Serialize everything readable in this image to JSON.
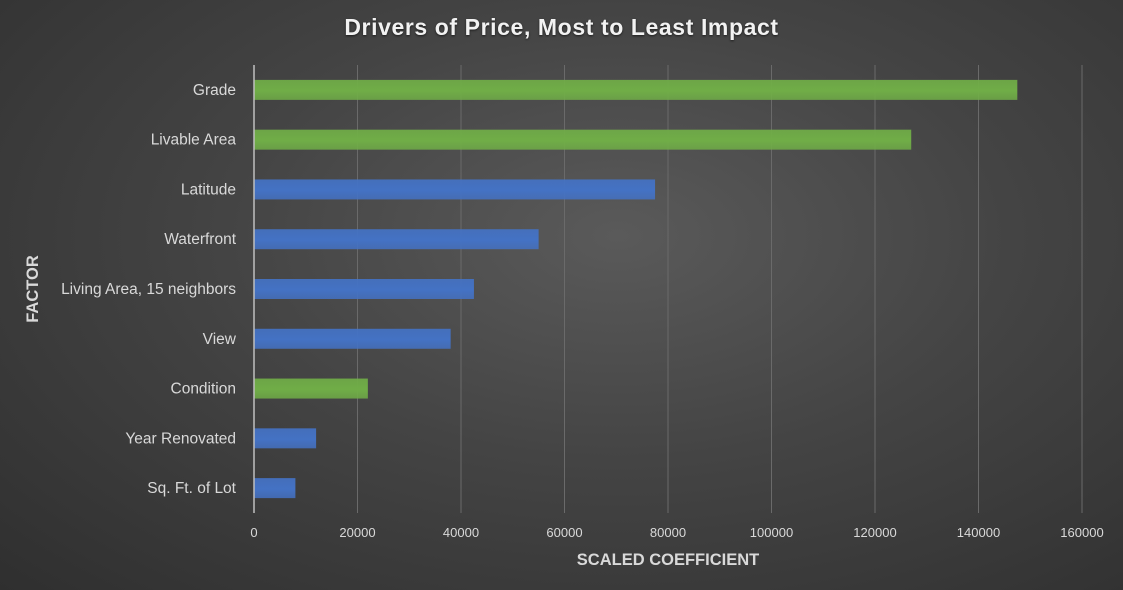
{
  "chart_data": {
    "type": "bar",
    "orientation": "horizontal",
    "title": "Drivers of Price, Most to Least Impact",
    "xlabel": "SCALED COEFFICIENT",
    "ylabel": "FACTOR",
    "categories": [
      "Grade",
      "Livable Area",
      "Latitude",
      "Waterfront",
      "Living Area, 15 neighbors",
      "View",
      "Condition",
      "Year Renovated",
      "Sq. Ft. of Lot"
    ],
    "values": [
      147500,
      127000,
      77500,
      55000,
      42500,
      38000,
      22000,
      12000,
      8000
    ],
    "bar_colors": [
      "#70ad47",
      "#70ad47",
      "#4472c4",
      "#4472c4",
      "#4472c4",
      "#4472c4",
      "#70ad47",
      "#4472c4",
      "#4472c4"
    ],
    "xlim": [
      0,
      160000
    ],
    "xticks": [
      0,
      20000,
      40000,
      60000,
      80000,
      100000,
      120000,
      140000,
      160000
    ],
    "xtick_labels": [
      "0",
      "20000",
      "40000",
      "60000",
      "80000",
      "100000",
      "120000",
      "140000",
      "160000"
    ],
    "grid": "vertical",
    "legend": "none",
    "colors": {
      "green": "#70ad47",
      "blue": "#4472c4",
      "gridline": "#6a6a6a",
      "axis_line": "#bfbfbf",
      "text": "#d9d9d9"
    }
  }
}
